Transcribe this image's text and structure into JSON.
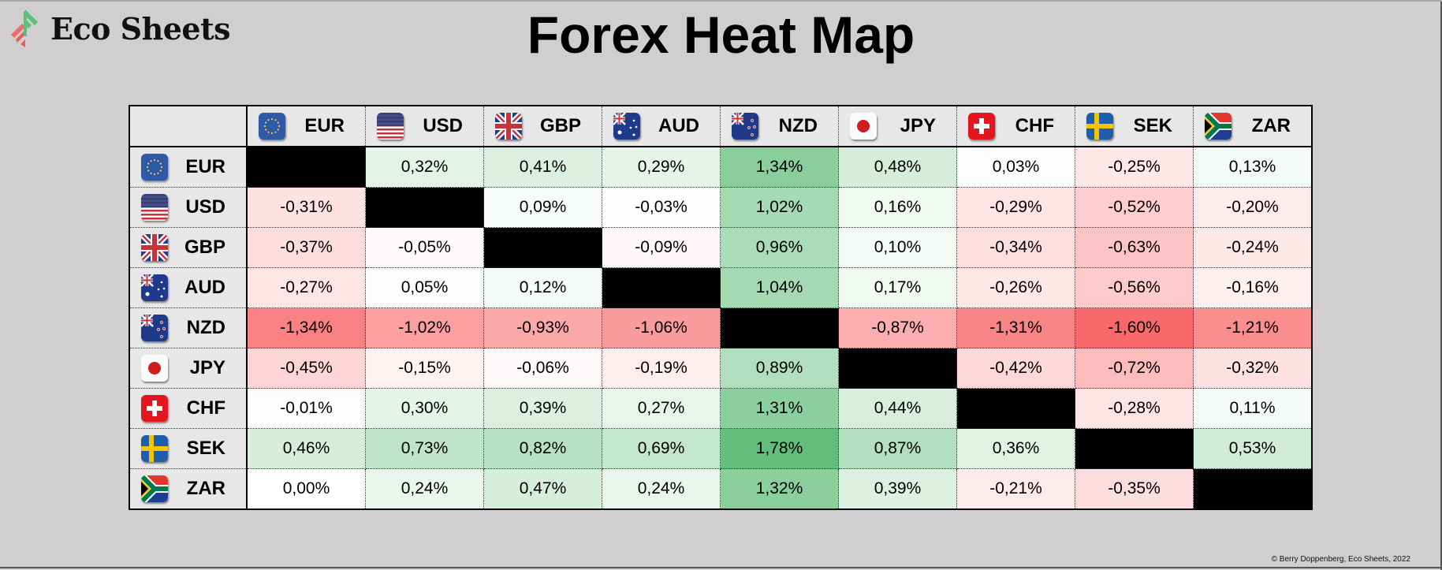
{
  "brand": {
    "name": "Eco Sheets",
    "logo_colors": [
      "#f06a6a",
      "#5cbf7a"
    ]
  },
  "title": "Forex Heat Map",
  "footer": "© Berry Doppenberg, Eco Sheets, 2022",
  "color_scale": {
    "min_color": "#f8696b",
    "mid_color": "#ffffff",
    "max_color": "#63be7b",
    "min": -1.6,
    "mid": 0,
    "max": 1.78,
    "diagonal_color": "#000000"
  },
  "chart_data": {
    "type": "heatmap",
    "title": "Forex Heat Map",
    "currencies": [
      "EUR",
      "USD",
      "GBP",
      "AUD",
      "NZD",
      "JPY",
      "CHF",
      "SEK",
      "ZAR"
    ],
    "flag_icons": [
      "eu-flag-icon",
      "us-flag-icon",
      "uk-flag-icon",
      "australia-flag-icon",
      "new-zealand-flag-icon",
      "japan-flag-icon",
      "switzerland-flag-icon",
      "sweden-flag-icon",
      "south-africa-flag-icon"
    ],
    "values": [
      [
        null,
        0.32,
        0.41,
        0.29,
        1.34,
        0.48,
        0.03,
        -0.25,
        0.13
      ],
      [
        -0.31,
        null,
        0.09,
        -0.03,
        1.02,
        0.16,
        -0.29,
        -0.52,
        -0.2
      ],
      [
        -0.37,
        -0.05,
        null,
        -0.09,
        0.96,
        0.1,
        -0.34,
        -0.63,
        -0.24
      ],
      [
        -0.27,
        0.05,
        0.12,
        null,
        1.04,
        0.17,
        -0.26,
        -0.56,
        -0.16
      ],
      [
        -1.34,
        -1.02,
        -0.93,
        -1.06,
        null,
        -0.87,
        -1.31,
        -1.6,
        -1.21
      ],
      [
        -0.45,
        -0.15,
        -0.06,
        -0.19,
        0.89,
        null,
        -0.42,
        -0.72,
        -0.32
      ],
      [
        -0.01,
        0.3,
        0.39,
        0.27,
        1.31,
        0.44,
        null,
        -0.28,
        0.11
      ],
      [
        0.46,
        0.73,
        0.82,
        0.69,
        1.78,
        0.87,
        0.36,
        null,
        0.53
      ],
      [
        0.0,
        0.24,
        0.47,
        0.24,
        1.32,
        0.39,
        -0.21,
        -0.35,
        null
      ]
    ],
    "labels": [
      [
        "",
        "0,32%",
        "0,41%",
        "0,29%",
        "1,34%",
        "0,48%",
        "0,03%",
        "-0,25%",
        "0,13%"
      ],
      [
        "-0,31%",
        "",
        "0,09%",
        "-0,03%",
        "1,02%",
        "0,16%",
        "-0,29%",
        "-0,52%",
        "-0,20%"
      ],
      [
        "-0,37%",
        "-0,05%",
        "",
        "-0,09%",
        "0,96%",
        "0,10%",
        "-0,34%",
        "-0,63%",
        "-0,24%"
      ],
      [
        "-0,27%",
        "0,05%",
        "0,12%",
        "",
        "1,04%",
        "0,17%",
        "-0,26%",
        "-0,56%",
        "-0,16%"
      ],
      [
        "-1,34%",
        "-1,02%",
        "-0,93%",
        "-1,06%",
        "",
        "-0,87%",
        "-1,31%",
        "-1,60%",
        "-1,21%"
      ],
      [
        "-0,45%",
        "-0,15%",
        "-0,06%",
        "-0,19%",
        "0,89%",
        "",
        "-0,42%",
        "-0,72%",
        "-0,32%"
      ],
      [
        "-0,01%",
        "0,30%",
        "0,39%",
        "0,27%",
        "1,31%",
        "0,44%",
        "",
        "-0,28%",
        "0,11%"
      ],
      [
        "0,46%",
        "0,73%",
        "0,82%",
        "0,69%",
        "1,78%",
        "0,87%",
        "0,36%",
        "",
        "0,53%"
      ],
      [
        "0,00%",
        "0,24%",
        "0,47%",
        "0,24%",
        "1,32%",
        "0,39%",
        "-0,21%",
        "-0,35%",
        ""
      ]
    ]
  }
}
